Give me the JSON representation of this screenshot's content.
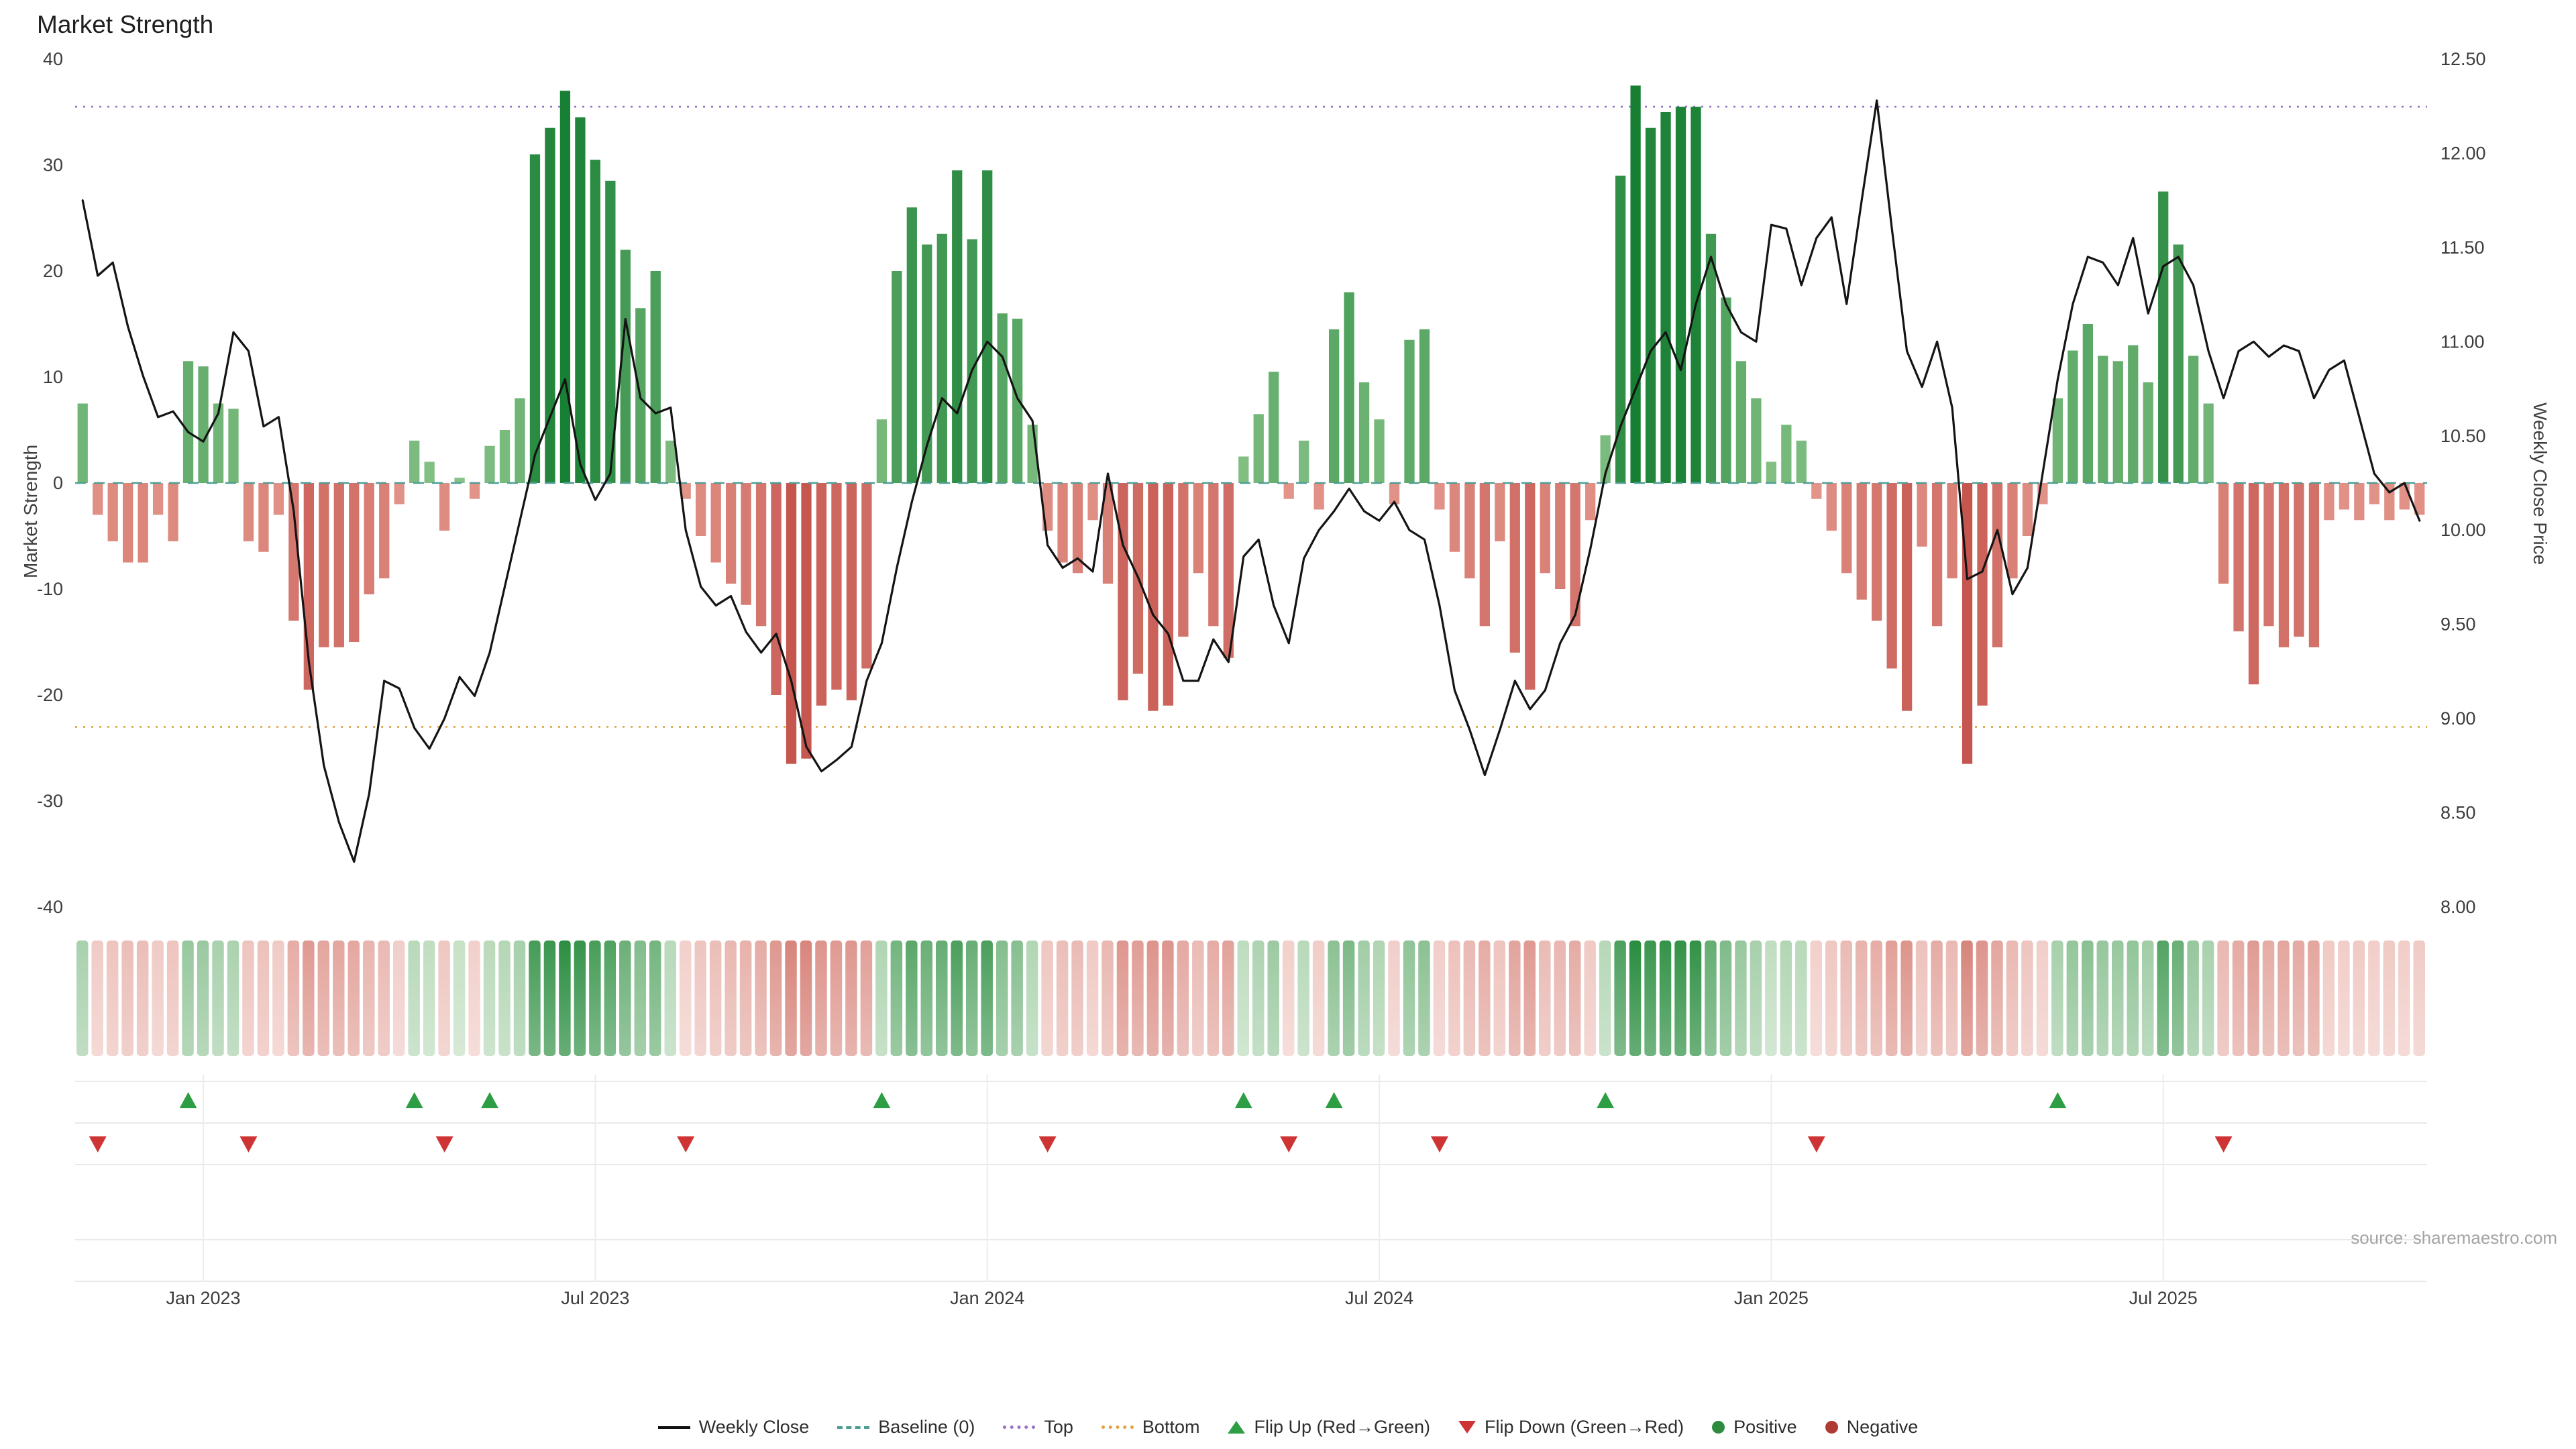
{
  "title": "Market Strength",
  "y_left_label": "Market Strength",
  "y_right_label": "Weekly Close Price",
  "source": "source: sharemaestro.com",
  "legend": {
    "weekly_close": "Weekly Close",
    "baseline": "Baseline (0)",
    "top": "Top",
    "bottom": "Bottom",
    "flip_up": "Flip Up (Red→Green)",
    "flip_down": "Flip Down (Green→Red)",
    "positive": "Positive",
    "negative": "Negative"
  },
  "colors": {
    "line": "#141414",
    "baseline": "#4f9e96",
    "top_line": "#9a6fc9",
    "bottom_line": "#e2a03f",
    "flip_up": "#2e9e44",
    "flip_down": "#cf3434",
    "positive_dark": "#157e32",
    "positive_light": "#a8d6a0",
    "negative_dark": "#b73934",
    "negative_light": "#f0b2a5"
  },
  "chart_data": {
    "type": "combo-bar-line",
    "title": "Market Strength",
    "x_tick_labels": [
      "Jan 2023",
      "Jul 2023",
      "Jan 2024",
      "Jul 2024",
      "Jan 2025",
      "Jul 2025"
    ],
    "x_tick_weeks": [
      8,
      34,
      60,
      86,
      112,
      138
    ],
    "y_left": {
      "min": -40,
      "max": 40,
      "ticks": [
        -40,
        -30,
        -20,
        -10,
        0,
        10,
        20,
        30,
        40
      ],
      "label": "Market Strength"
    },
    "y_right": {
      "min": 8.0,
      "max": 12.5,
      "tick_values": [
        8.0,
        8.5,
        9.0,
        9.5,
        10.0,
        10.5,
        11.0,
        11.5,
        12.0,
        12.5
      ],
      "ticks": [
        "8.00",
        "8.50",
        "9.00",
        "9.50",
        "10.00",
        "10.50",
        "11.00",
        "11.50",
        "12.00",
        "12.50"
      ],
      "label": "Weekly Close Price"
    },
    "top_line": 35.5,
    "bottom_line": -23,
    "baseline": 0,
    "strength": [
      7.5,
      -3,
      -5.5,
      -7.5,
      -7.5,
      -3,
      -5.5,
      11.5,
      11,
      7.5,
      7,
      -5.5,
      -6.5,
      -3,
      -13,
      -19.5,
      -15.5,
      -15.5,
      -15,
      -10.5,
      -9,
      -2,
      4,
      2,
      -4.5,
      0.5,
      -1.5,
      3.5,
      5,
      8,
      31,
      33.5,
      37,
      34.5,
      30.5,
      28.5,
      22,
      16.5,
      20,
      4,
      -1.5,
      -5,
      -7.5,
      -9.5,
      -11.5,
      -13.5,
      -20,
      -26.5,
      -26,
      -21,
      -19.5,
      -20.5,
      -17.5,
      6,
      20,
      26,
      22.5,
      23.5,
      29.5,
      23,
      29.5,
      16,
      15.5,
      5.5,
      -4.5,
      -7.5,
      -8.5,
      -3.5,
      -9.5,
      -20.5,
      -18,
      -21.5,
      -21,
      -14.5,
      -8.5,
      -13.5,
      -16.5,
      2.5,
      6.5,
      10.5,
      -1.5,
      4,
      -2.5,
      14.5,
      18,
      9.5,
      6,
      -2,
      13.5,
      14.5,
      -2.5,
      -6.5,
      -9,
      -13.5,
      -5.5,
      -16,
      -19.5,
      -8.5,
      -10,
      -13.5,
      -3.5,
      4.5,
      29,
      37.5,
      33.5,
      35,
      35.5,
      35.5,
      23.5,
      17.5,
      11.5,
      8,
      2,
      5.5,
      4,
      -1.5,
      -4.5,
      -8.5,
      -11,
      -13,
      -17.5,
      -21.5,
      -6,
      -13.5,
      -9,
      -26.5,
      -21,
      -15.5,
      -9,
      -5,
      -2,
      8,
      12.5,
      15,
      12,
      11.5,
      13,
      9.5,
      27.5,
      22.5,
      12,
      7.5,
      -9.5,
      -14,
      -19,
      -13.5,
      -15.5,
      -14.5,
      -15.5,
      -3.5,
      -2.5,
      -3.5,
      -2,
      -3.5,
      -2.5,
      -3
    ],
    "weekly_close": [
      11.75,
      11.35,
      11.42,
      11.08,
      10.82,
      10.6,
      10.63,
      10.52,
      10.47,
      10.62,
      11.05,
      10.95,
      10.55,
      10.6,
      10.1,
      9.3,
      8.75,
      8.45,
      8.24,
      8.6,
      9.2,
      9.16,
      8.95,
      8.84,
      9.0,
      9.22,
      9.12,
      9.35,
      9.7,
      10.05,
      10.4,
      10.6,
      10.8,
      10.35,
      10.16,
      10.3,
      11.12,
      10.7,
      10.62,
      10.65,
      10.0,
      9.7,
      9.6,
      9.65,
      9.46,
      9.35,
      9.45,
      9.2,
      8.85,
      8.72,
      8.78,
      8.85,
      9.2,
      9.4,
      9.8,
      10.15,
      10.45,
      10.7,
      10.62,
      10.85,
      11.0,
      10.92,
      10.7,
      10.58,
      9.92,
      9.8,
      9.85,
      9.78,
      10.3,
      9.92,
      9.75,
      9.55,
      9.45,
      9.2,
      9.2,
      9.42,
      9.3,
      9.86,
      9.95,
      9.6,
      9.4,
      9.85,
      10.0,
      10.1,
      10.22,
      10.1,
      10.05,
      10.15,
      10.0,
      9.95,
      9.6,
      9.15,
      8.94,
      8.7,
      8.94,
      9.2,
      9.05,
      9.15,
      9.4,
      9.55,
      9.9,
      10.3,
      10.55,
      10.75,
      10.95,
      11.05,
      10.85,
      11.2,
      11.45,
      11.2,
      11.05,
      11.0,
      11.62,
      11.6,
      11.3,
      11.55,
      11.66,
      11.2,
      11.75,
      12.28,
      11.6,
      10.95,
      10.76,
      11.0,
      10.65,
      9.74,
      9.78,
      10.0,
      9.66,
      9.8,
      10.3,
      10.8,
      11.2,
      11.45,
      11.42,
      11.3,
      11.55,
      11.15,
      11.4,
      11.45,
      11.3,
      10.95,
      10.7,
      10.95,
      11.0,
      10.92,
      10.98,
      10.95,
      10.7,
      10.85,
      10.9,
      10.6,
      10.3,
      10.2,
      10.25,
      10.05
    ],
    "flip_up_weeks": [
      7,
      22,
      27,
      53,
      77,
      83,
      101,
      131
    ],
    "flip_down_weeks": [
      1,
      11,
      24,
      40,
      64,
      80,
      90,
      115,
      142
    ],
    "legend_position": "bottom",
    "grid": false
  }
}
